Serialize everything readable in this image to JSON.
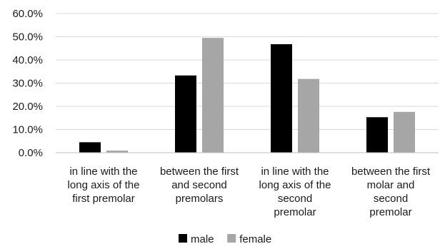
{
  "chart_data": {
    "type": "bar",
    "categories": [
      [
        "in line with the",
        "long axis of the",
        "first premolar"
      ],
      [
        "between the first",
        "and second",
        "premolars"
      ],
      [
        "in line with the",
        "long axis of the",
        "second",
        "premolar"
      ],
      [
        "between the first",
        "molar and",
        "second",
        "premolar"
      ]
    ],
    "series": [
      {
        "name": "male",
        "color": "#000000",
        "values": [
          4.5,
          33.3,
          46.8,
          15.3
        ]
      },
      {
        "name": "female",
        "color": "#a6a6a6",
        "values": [
          0.9,
          49.5,
          31.8,
          17.6
        ]
      }
    ],
    "ylim": [
      0,
      60
    ],
    "yticks": [
      "0.0%",
      "10.0%",
      "20.0%",
      "30.0%",
      "40.0%",
      "50.0%",
      "60.0%"
    ],
    "grid": true,
    "legend_position": "bottom"
  }
}
